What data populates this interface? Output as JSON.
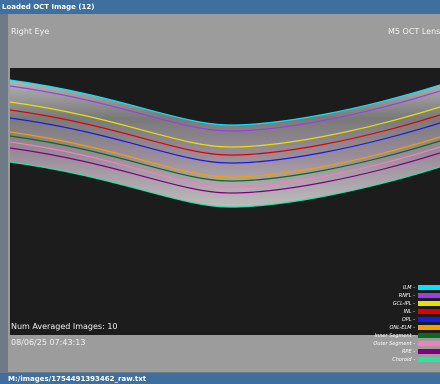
{
  "window": {
    "title": "Loaded OCT Image (12)"
  },
  "image": {
    "eye": "Right Eye",
    "lens": "M5 OCT Lens",
    "averaged": "Num Averaged Images: 10",
    "timestamp": "08/06/25 07:43:13"
  },
  "legend": {
    "items": [
      "ILM -",
      "RNFL -",
      "GCL-IPL -",
      "INL -",
      "OPL -",
      "ONL-ELM -",
      "Inner Segment -",
      "Outer Segment -",
      "RPE -",
      "Choroid -"
    ]
  },
  "status": {
    "path": "M:/images/1754491393462_raw.txt"
  }
}
